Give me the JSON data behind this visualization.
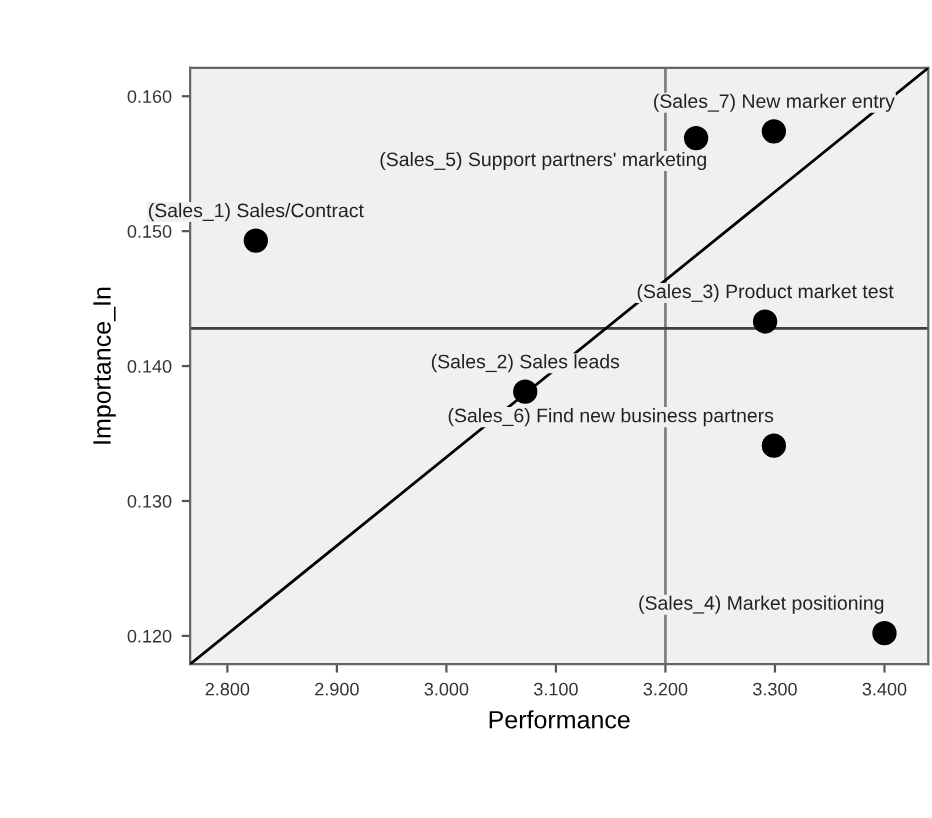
{
  "chart_data": {
    "type": "scatter",
    "xlabel": "Performance",
    "ylabel": "Importance_In",
    "xlim": [
      2.766,
      3.44
    ],
    "ylim": [
      0.1179,
      0.1621
    ],
    "xticks": [
      {
        "value": 2.8,
        "label": "2.800"
      },
      {
        "value": 2.9,
        "label": "2.900"
      },
      {
        "value": 3.0,
        "label": "3.000"
      },
      {
        "value": 3.1,
        "label": "3.100"
      },
      {
        "value": 3.2,
        "label": "3.200"
      },
      {
        "value": 3.3,
        "label": "3.300"
      },
      {
        "value": 3.4,
        "label": "3.400"
      }
    ],
    "yticks": [
      {
        "value": 0.12,
        "label": "0.120"
      },
      {
        "value": 0.13,
        "label": "0.130"
      },
      {
        "value": 0.14,
        "label": "0.140"
      },
      {
        "value": 0.15,
        "label": "0.150"
      },
      {
        "value": 0.16,
        "label": "0.160"
      }
    ],
    "marker": "circle",
    "grid": false,
    "legend": false,
    "series": [
      {
        "color": "#000000",
        "x": [
          2.826,
          3.072,
          3.291,
          3.4,
          3.228,
          3.299,
          3.299
        ],
        "values": [
          0.1493,
          0.1381,
          0.1433,
          0.1202,
          0.1569,
          0.1341,
          0.1574
        ]
      },
      {
        "type": "line",
        "marker": "none",
        "color": "#000000",
        "x": [
          2.766,
          3.44
        ],
        "values": [
          0.1179,
          0.1621
        ]
      }
    ],
    "annotations": [
      {
        "text": "(Sales_7) New marker entry",
        "x": 3.299,
        "y": 0.1574
      },
      {
        "text": "(Sales_5) Support partners' marketing",
        "x": 3.228,
        "y": 0.1569
      },
      {
        "text": "(Sales_1) Sales/Contract",
        "x": 2.826,
        "y": 0.1493
      },
      {
        "text": "(Sales_3) Product market test",
        "x": 3.291,
        "y": 0.1433
      },
      {
        "text": "(Sales_2) Sales leads",
        "x": 3.072,
        "y": 0.1381
      },
      {
        "text": "(Sales_6) Find new business partners",
        "x": 3.299,
        "y": 0.1341
      },
      {
        "text": "(Sales_4) Market positioning",
        "x": 3.4,
        "y": 0.1202
      }
    ],
    "ref_lines": [
      {
        "axis": "x",
        "value": 3.2,
        "color": "#808080"
      },
      {
        "axis": "y",
        "value": 0.1428,
        "color": "#404040"
      }
    ]
  }
}
